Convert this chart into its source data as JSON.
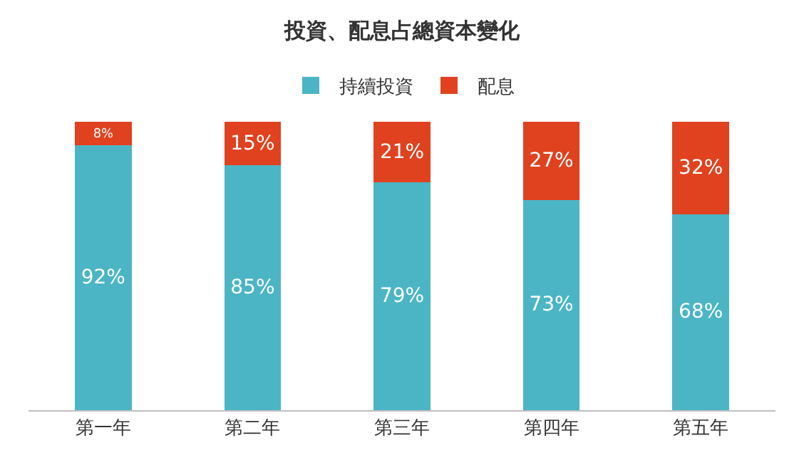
{
  "chart_data": {
    "type": "bar",
    "title": "投資、配息占總資本變化",
    "stacked": true,
    "legend": "top",
    "tick_labels": "x",
    "categories": [
      "第一年",
      "第二年",
      "第三年",
      "第四年",
      "第五年"
    ],
    "series": [
      {
        "name": "持續投資",
        "color": "#4bb5c5",
        "values": [
          92,
          85,
          79,
          73,
          68
        ],
        "value_labels": [
          "92%",
          "85%",
          "79%",
          "73%",
          "68%"
        ]
      },
      {
        "name": "配息",
        "color": "#e0421f",
        "values": [
          8,
          15,
          21,
          27,
          32
        ],
        "value_labels": [
          "8%",
          "15%",
          "21%",
          "27%",
          "32%"
        ]
      }
    ]
  }
}
